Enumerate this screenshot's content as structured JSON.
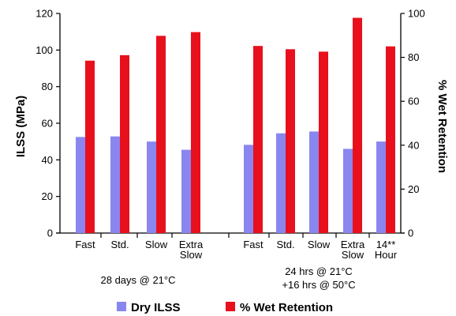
{
  "chart_data": {
    "type": "bar",
    "categories": [
      "Fast",
      "Std.",
      "Slow",
      "Extra Slow",
      "Fast",
      "Std.",
      "Slow",
      "Extra Slow",
      "14** Hour"
    ],
    "groups": [
      {
        "label_lines": [
          "28 days @ 21°C"
        ],
        "category_indices": [
          0,
          1,
          2,
          3
        ]
      },
      {
        "label_lines": [
          "24 hrs @ 21°C",
          "+16 hrs @ 50°C"
        ],
        "category_indices": [
          4,
          5,
          6,
          7,
          8
        ]
      }
    ],
    "series": [
      {
        "name": "Dry ILSS",
        "axis": "left",
        "color": "#8a86f0",
        "values": [
          52.5,
          52.8,
          50,
          45.5,
          48.2,
          54.5,
          55.5,
          46,
          50
        ]
      },
      {
        "name": "% Wet Retention",
        "axis": "right",
        "color": "#e8101c",
        "values": [
          78.5,
          81,
          89.8,
          91.5,
          85.2,
          83.7,
          82.6,
          98,
          85
        ]
      }
    ],
    "ylabel": "ILSS (MPa)",
    "ylabel_right": "% Wet Retention",
    "ylim": [
      0,
      120
    ],
    "ylim_right": [
      0,
      100
    ],
    "yticks": [
      0,
      20,
      40,
      60,
      80,
      100,
      120
    ],
    "yticks_right": [
      0,
      20,
      40,
      60,
      80,
      100
    ],
    "grid": false,
    "legend_position": "bottom"
  }
}
